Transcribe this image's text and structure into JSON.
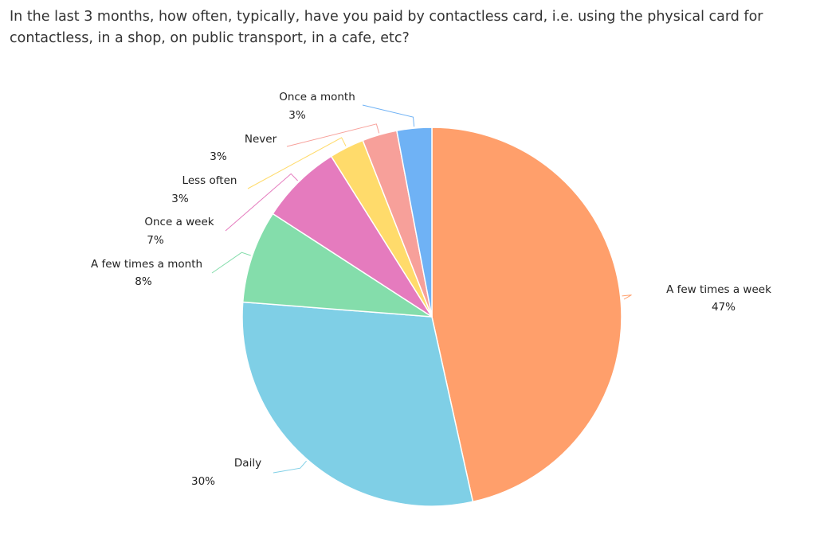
{
  "chart_data": {
    "type": "pie",
    "title": "In the last 3 months, how often, typically, have you paid by contactless card, i.e. using the physical card for contactless, in a shop, on public transport, in a cafe, etc?",
    "categories": [
      "A few times a week",
      "Daily",
      "A few times a month",
      "Once a week",
      "Less often",
      "Never",
      "Once a month"
    ],
    "values": [
      47,
      30,
      8,
      7,
      3,
      3,
      3
    ],
    "value_labels": [
      "47%",
      "30%",
      "8%",
      "7%",
      "3%",
      "3%",
      "3%"
    ],
    "colors": [
      "#ff9f6b",
      "#7fcfe6",
      "#84ddab",
      "#e57bbe",
      "#ffdb6b",
      "#f7a09a",
      "#6fb2f5"
    ]
  }
}
